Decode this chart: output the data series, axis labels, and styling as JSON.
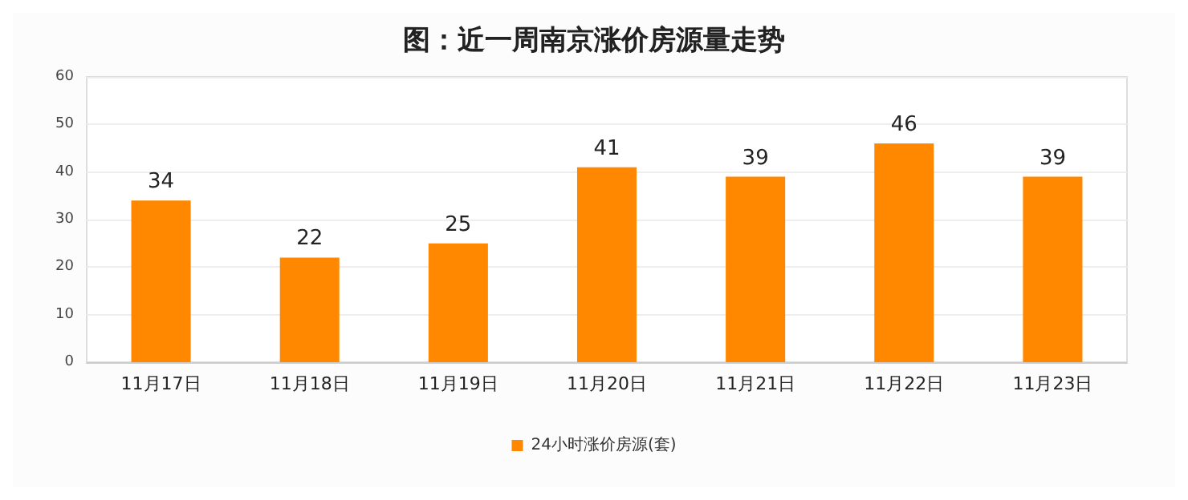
{
  "chart_data": {
    "type": "bar",
    "title": "图：近一周南京涨价房源量走势",
    "categories": [
      "11月17日",
      "11月18日",
      "11月19日",
      "11月20日",
      "11月21日",
      "11月22日",
      "11月23日"
    ],
    "series": [
      {
        "name": "24小时涨价房源(套)",
        "color": "#ff8800",
        "values": [
          34,
          22,
          25,
          41,
          39,
          46,
          39
        ]
      }
    ],
    "ylim": [
      0,
      60
    ],
    "yticks": [
      0,
      10,
      20,
      30,
      40,
      50,
      60
    ],
    "grid": "y",
    "legend": "bottom",
    "data_labels": true
  }
}
